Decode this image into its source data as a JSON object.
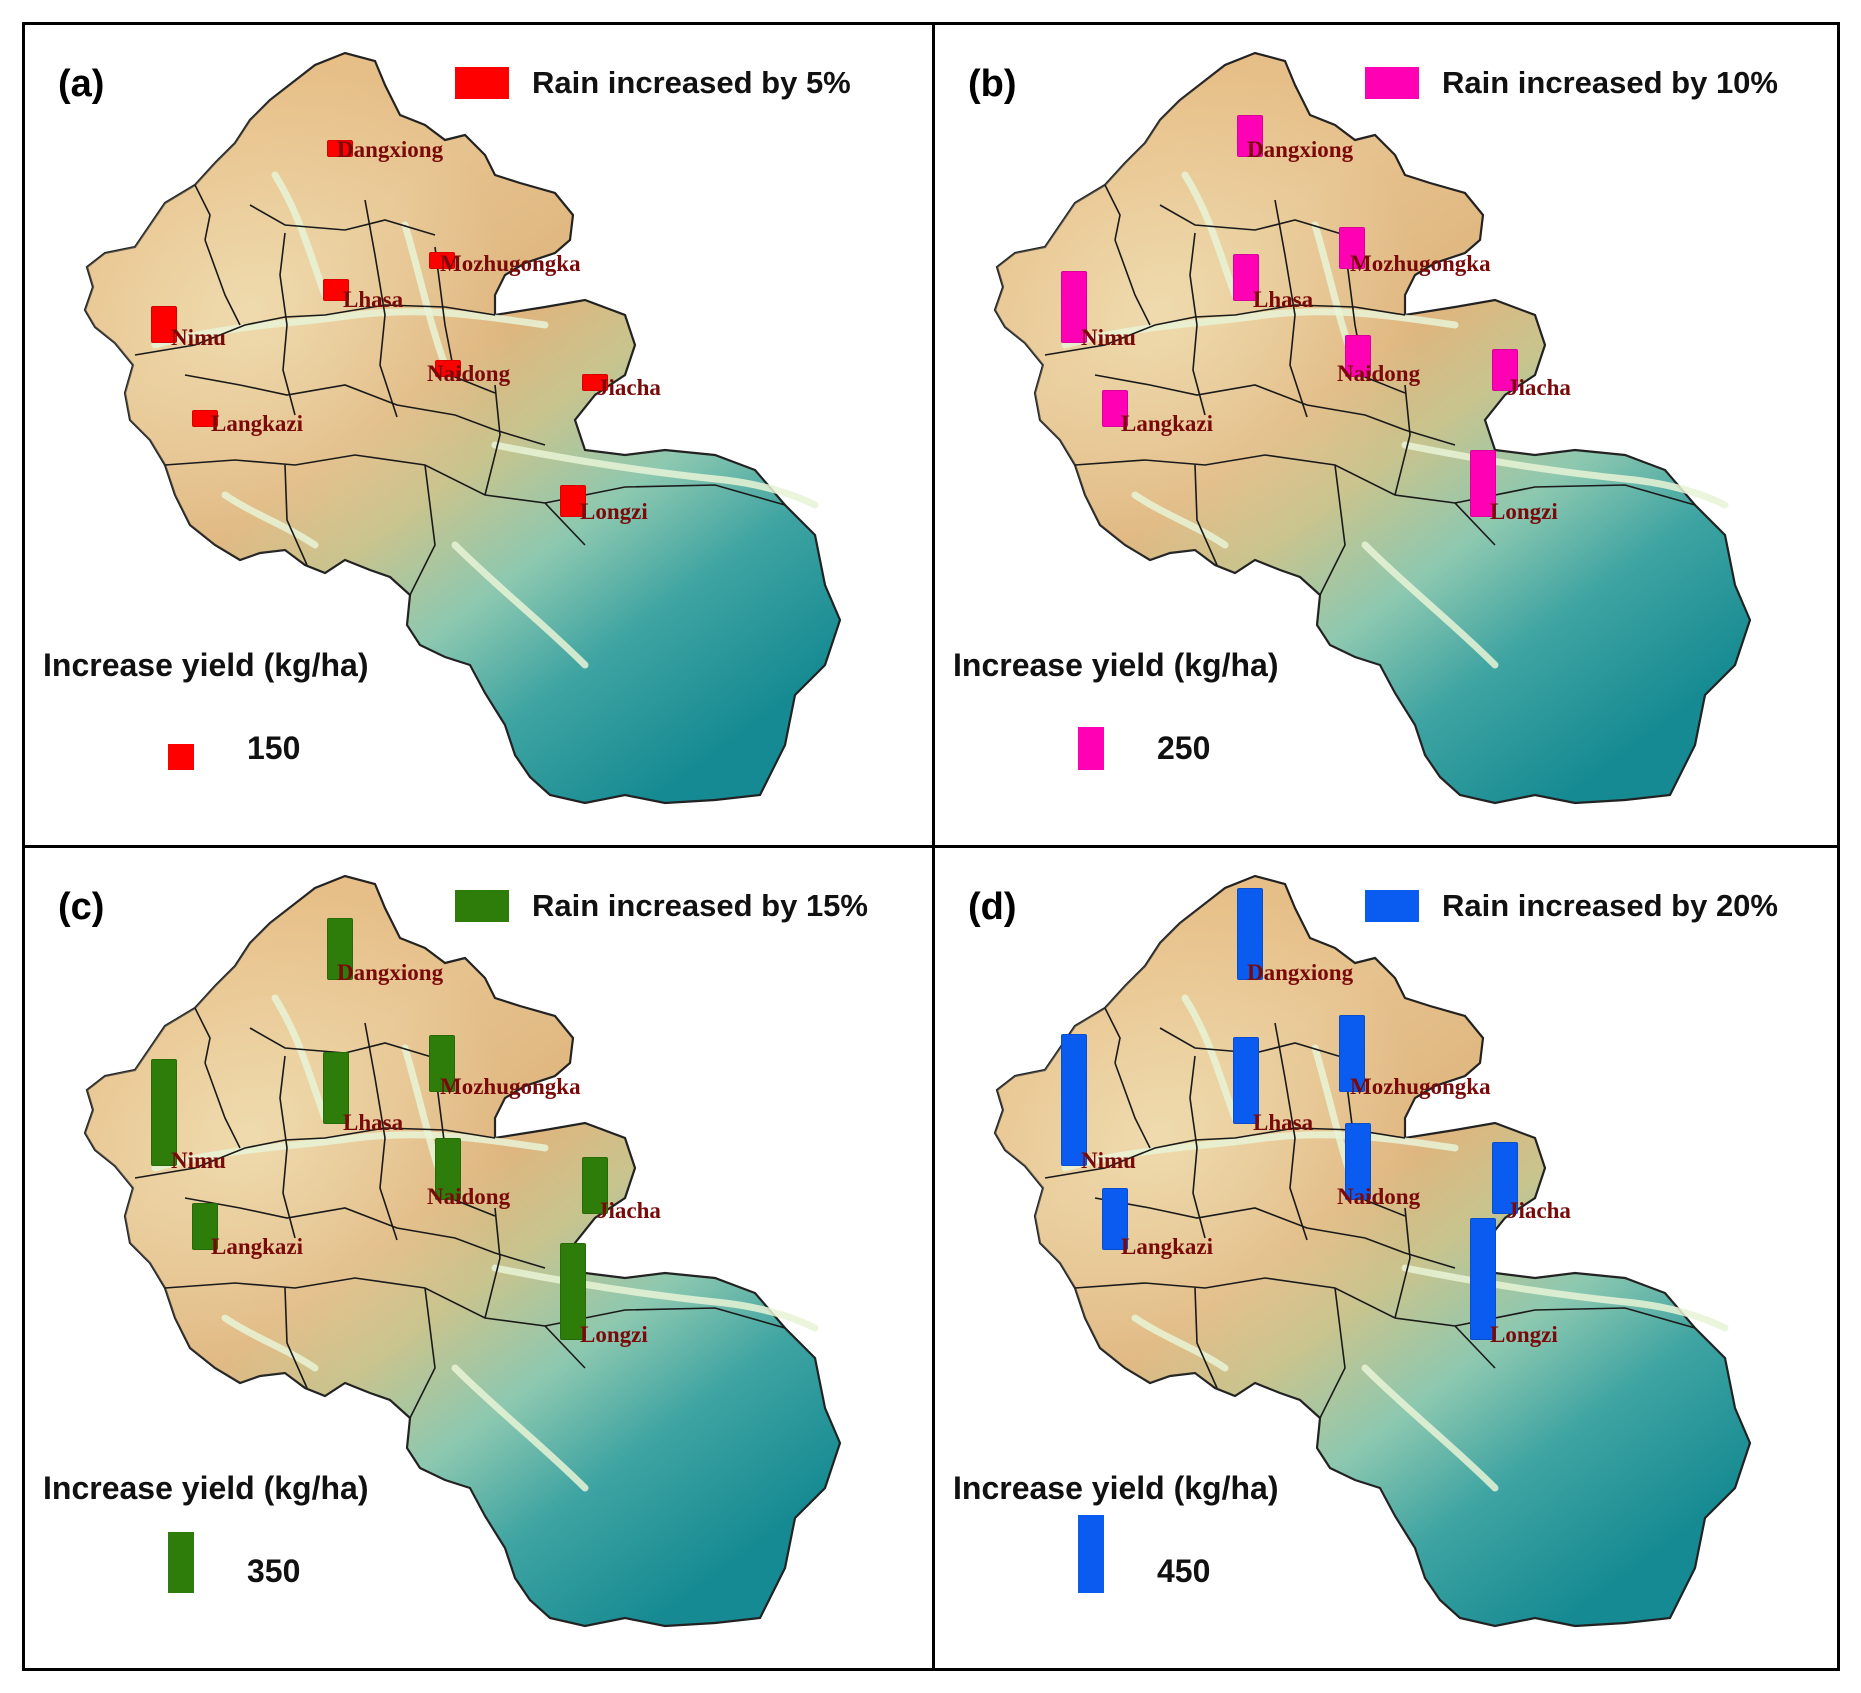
{
  "map_features": {
    "relief": [
      "elevation-gradient-tan-to-teal",
      "river-valleys-light",
      "district-boundaries"
    ]
  },
  "yield_title": "Increase yield (kg/ha)",
  "site_names": [
    "Dangxiong",
    "Mozhugongka",
    "Lhasa",
    "Nimu",
    "Naidong",
    "Jiacha",
    "Langkazi",
    "Longzi"
  ],
  "panels": [
    {
      "label": "(a)",
      "legend": "Rain increased by 5%",
      "color": "#ff0000",
      "reference_value": "150",
      "site_values": [
        0.15,
        0.15,
        0.2,
        0.35,
        0.15,
        0.15,
        0.15,
        0.3
      ]
    },
    {
      "label": "(b)",
      "legend": "Rain increased by 10%",
      "color": "#ff00b4",
      "reference_value": "250",
      "site_values": [
        0.4,
        0.4,
        0.45,
        0.7,
        0.4,
        0.4,
        0.35,
        0.65
      ]
    },
    {
      "label": "(c)",
      "legend": "Rain increased by 15%",
      "color": "#2e7d0a",
      "reference_value": "350",
      "site_values": [
        0.6,
        0.55,
        0.7,
        1.05,
        0.6,
        0.55,
        0.45,
        0.95
      ]
    },
    {
      "label": "(d)",
      "legend": "Rain increased by 20%",
      "color": "#0a5cf0",
      "reference_value": "450",
      "site_values": [
        0.9,
        0.75,
        0.85,
        1.3,
        0.75,
        0.7,
        0.6,
        1.2
      ]
    }
  ]
}
